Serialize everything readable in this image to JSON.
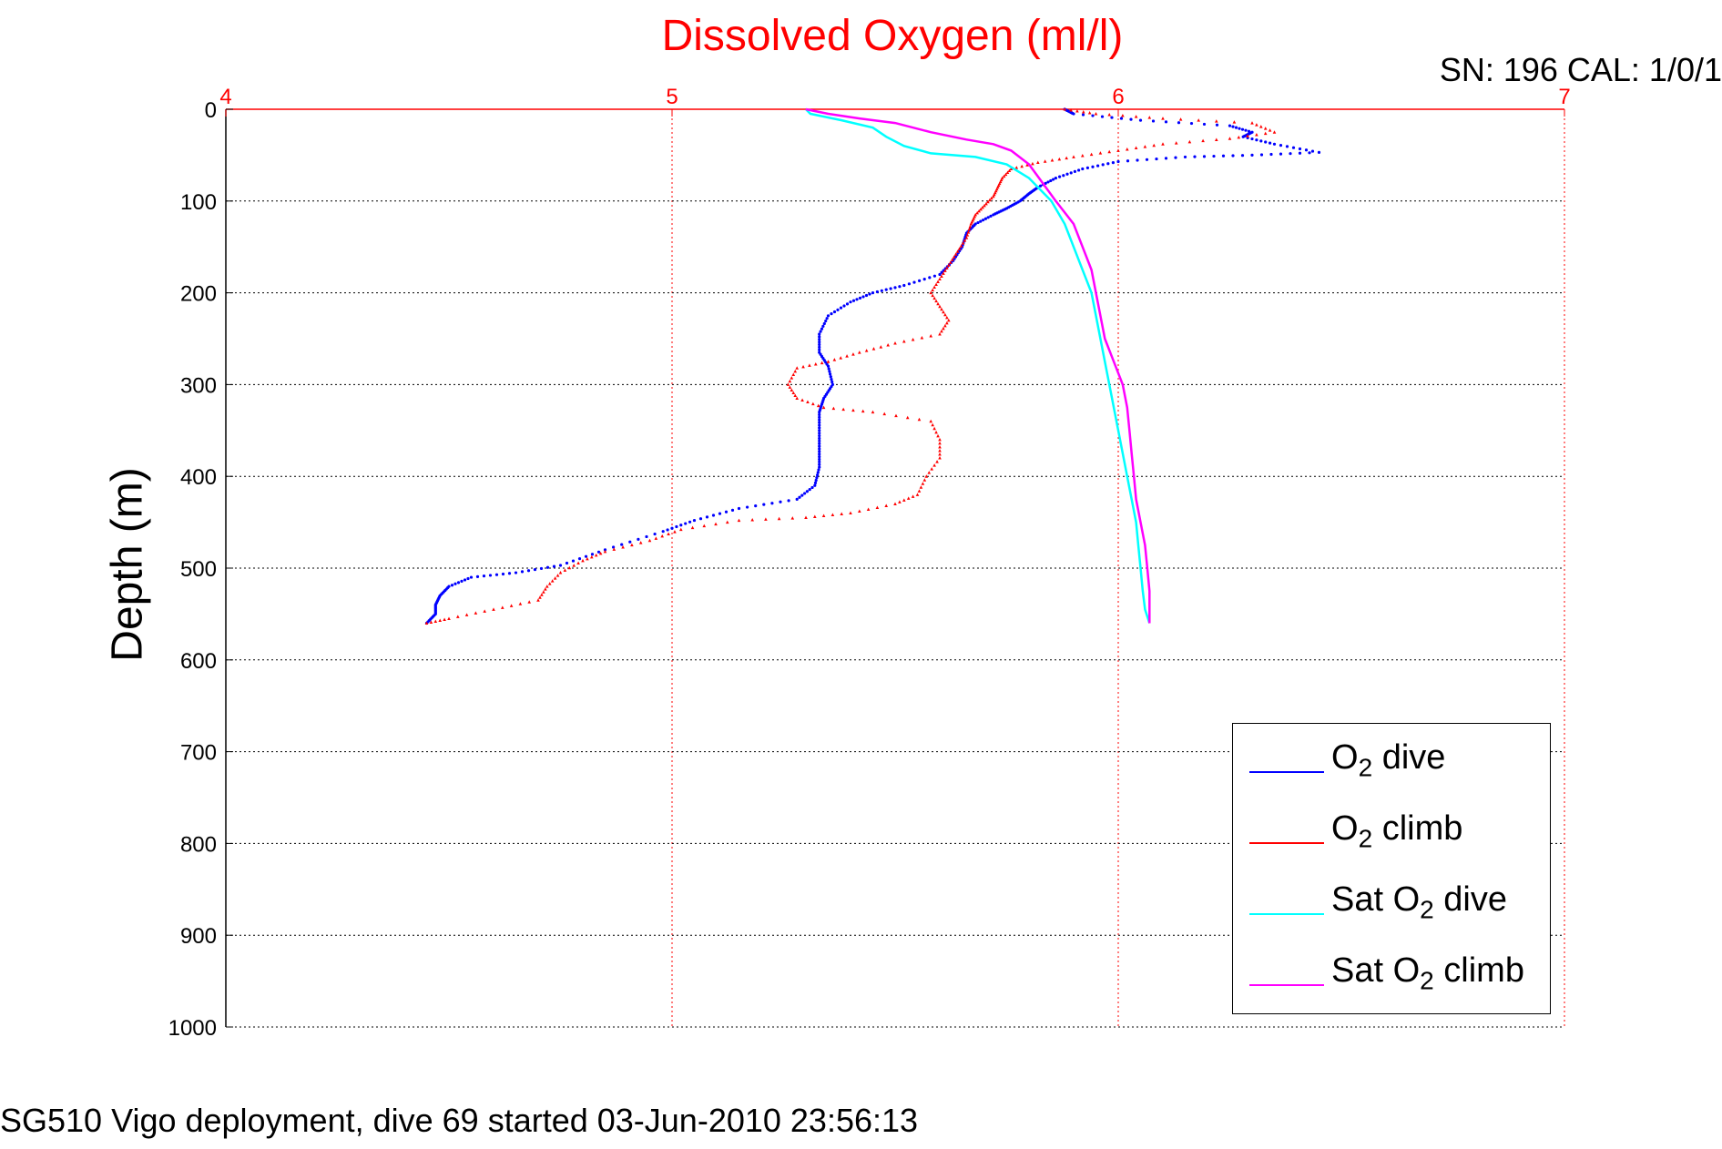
{
  "chart_data": {
    "type": "scatter",
    "title": "Dissolved Oxygen (ml/l)",
    "ylabel": "Depth (m)",
    "xlabel": "",
    "serial_info": "SN: 196  CAL: 1/0/1",
    "caption": "SG510 Vigo deployment, dive 69 started 03-Jun-2010 23:56:13",
    "xlim": [
      4,
      7
    ],
    "ylim": [
      0,
      1000
    ],
    "y_reversed": true,
    "x_axis_position": "top",
    "xticks": [
      4,
      5,
      6,
      7
    ],
    "yticks": [
      0,
      100,
      200,
      300,
      400,
      500,
      600,
      700,
      800,
      900,
      1000
    ],
    "grid": true,
    "legend_position": "bottom-right",
    "axis_color": "#ff0000",
    "series": [
      {
        "name": "O2 dive",
        "label_prefix": "O",
        "label_sub": "2",
        "label_suffix": " dive",
        "color": "#0000ff",
        "marker": "dot",
        "points": [
          [
            5.88,
            0
          ],
          [
            5.9,
            5
          ],
          [
            6.05,
            12
          ],
          [
            6.25,
            18
          ],
          [
            6.3,
            25
          ],
          [
            6.28,
            30
          ],
          [
            6.35,
            38
          ],
          [
            6.45,
            47
          ],
          [
            6.3,
            50
          ],
          [
            6.15,
            52
          ],
          [
            6.0,
            57
          ],
          [
            5.92,
            65
          ],
          [
            5.86,
            75
          ],
          [
            5.82,
            85
          ],
          [
            5.8,
            92
          ],
          [
            5.78,
            100
          ],
          [
            5.75,
            108
          ],
          [
            5.72,
            115
          ],
          [
            5.68,
            125
          ],
          [
            5.66,
            135
          ],
          [
            5.65,
            150
          ],
          [
            5.63,
            165
          ],
          [
            5.6,
            180
          ],
          [
            5.52,
            192
          ],
          [
            5.45,
            200
          ],
          [
            5.4,
            210
          ],
          [
            5.35,
            225
          ],
          [
            5.33,
            245
          ],
          [
            5.33,
            265
          ],
          [
            5.35,
            280
          ],
          [
            5.36,
            300
          ],
          [
            5.34,
            315
          ],
          [
            5.33,
            330
          ],
          [
            5.33,
            350
          ],
          [
            5.33,
            370
          ],
          [
            5.33,
            390
          ],
          [
            5.32,
            410
          ],
          [
            5.28,
            425
          ],
          [
            5.15,
            435
          ],
          [
            5.05,
            448
          ],
          [
            4.98,
            460
          ],
          [
            4.85,
            480
          ],
          [
            4.75,
            497
          ],
          [
            4.65,
            505
          ],
          [
            4.55,
            510
          ],
          [
            4.5,
            520
          ],
          [
            4.48,
            530
          ],
          [
            4.47,
            540
          ],
          [
            4.47,
            550
          ],
          [
            4.45,
            560
          ]
        ]
      },
      {
        "name": "O2 climb",
        "label_prefix": "O",
        "label_sub": "2",
        "label_suffix": " climb",
        "color": "#ff0000",
        "marker": "triangle",
        "points": [
          [
            5.88,
            0
          ],
          [
            5.95,
            5
          ],
          [
            6.1,
            10
          ],
          [
            6.3,
            15
          ],
          [
            6.35,
            25
          ],
          [
            6.25,
            32
          ],
          [
            6.1,
            38
          ],
          [
            6.0,
            45
          ],
          [
            5.9,
            52
          ],
          [
            5.82,
            58
          ],
          [
            5.76,
            65
          ],
          [
            5.74,
            75
          ],
          [
            5.73,
            85
          ],
          [
            5.72,
            95
          ],
          [
            5.7,
            105
          ],
          [
            5.68,
            115
          ],
          [
            5.67,
            125
          ],
          [
            5.66,
            140
          ],
          [
            5.64,
            155
          ],
          [
            5.62,
            170
          ],
          [
            5.6,
            185
          ],
          [
            5.58,
            200
          ],
          [
            5.6,
            215
          ],
          [
            5.62,
            230
          ],
          [
            5.6,
            245
          ],
          [
            5.5,
            255
          ],
          [
            5.42,
            265
          ],
          [
            5.35,
            275
          ],
          [
            5.28,
            282
          ],
          [
            5.26,
            300
          ],
          [
            5.28,
            315
          ],
          [
            5.34,
            325
          ],
          [
            5.45,
            330
          ],
          [
            5.58,
            340
          ],
          [
            5.6,
            360
          ],
          [
            5.6,
            380
          ],
          [
            5.57,
            400
          ],
          [
            5.55,
            420
          ],
          [
            5.5,
            430
          ],
          [
            5.4,
            440
          ],
          [
            5.3,
            445
          ],
          [
            5.15,
            448
          ],
          [
            5.02,
            458
          ],
          [
            4.95,
            470
          ],
          [
            4.85,
            482
          ],
          [
            4.8,
            492
          ],
          [
            4.75,
            505
          ],
          [
            4.72,
            520
          ],
          [
            4.7,
            535
          ],
          [
            4.6,
            545
          ],
          [
            4.5,
            555
          ],
          [
            4.45,
            560
          ]
        ]
      },
      {
        "name": "Sat O2 dive",
        "label_prefix": "Sat O",
        "label_sub": "2",
        "label_suffix": " dive",
        "color": "#00ffff",
        "marker": "line",
        "points": [
          [
            5.3,
            0
          ],
          [
            5.31,
            5
          ],
          [
            5.38,
            12
          ],
          [
            5.45,
            20
          ],
          [
            5.48,
            30
          ],
          [
            5.52,
            40
          ],
          [
            5.58,
            48
          ],
          [
            5.68,
            52
          ],
          [
            5.75,
            60
          ],
          [
            5.8,
            75
          ],
          [
            5.85,
            100
          ],
          [
            5.88,
            125
          ],
          [
            5.9,
            150
          ],
          [
            5.92,
            175
          ],
          [
            5.94,
            200
          ],
          [
            5.95,
            225
          ],
          [
            5.96,
            250
          ],
          [
            5.97,
            275
          ],
          [
            5.98,
            300
          ],
          [
            5.99,
            325
          ],
          [
            6.0,
            350
          ],
          [
            6.01,
            375
          ],
          [
            6.02,
            400
          ],
          [
            6.03,
            425
          ],
          [
            6.04,
            450
          ],
          [
            6.045,
            475
          ],
          [
            6.05,
            500
          ],
          [
            6.055,
            525
          ],
          [
            6.06,
            545
          ],
          [
            6.07,
            560
          ]
        ]
      },
      {
        "name": "Sat O2 climb",
        "label_prefix": "Sat O",
        "label_sub": "2",
        "label_suffix": " climb",
        "color": "#ff00ff",
        "marker": "line",
        "points": [
          [
            5.3,
            0
          ],
          [
            5.35,
            5
          ],
          [
            5.42,
            10
          ],
          [
            5.5,
            15
          ],
          [
            5.58,
            25
          ],
          [
            5.66,
            33
          ],
          [
            5.72,
            38
          ],
          [
            5.76,
            45
          ],
          [
            5.8,
            60
          ],
          [
            5.83,
            80
          ],
          [
            5.86,
            100
          ],
          [
            5.9,
            125
          ],
          [
            5.92,
            150
          ],
          [
            5.94,
            175
          ],
          [
            5.95,
            200
          ],
          [
            5.96,
            225
          ],
          [
            5.97,
            250
          ],
          [
            5.99,
            275
          ],
          [
            6.01,
            300
          ],
          [
            6.02,
            325
          ],
          [
            6.025,
            350
          ],
          [
            6.03,
            375
          ],
          [
            6.035,
            400
          ],
          [
            6.04,
            425
          ],
          [
            6.05,
            450
          ],
          [
            6.06,
            475
          ],
          [
            6.065,
            500
          ],
          [
            6.07,
            525
          ],
          [
            6.07,
            545
          ],
          [
            6.07,
            560
          ]
        ]
      }
    ]
  }
}
